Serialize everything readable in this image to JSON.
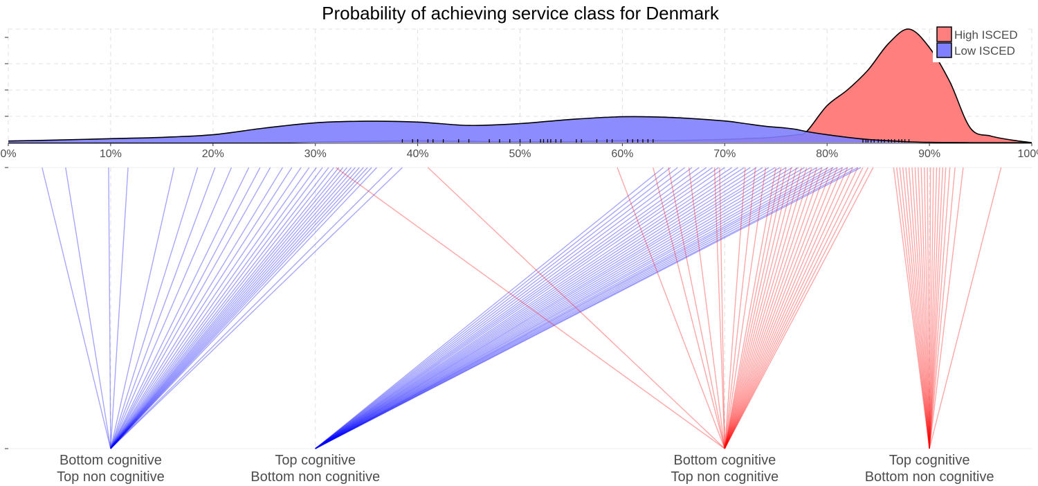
{
  "colors": {
    "high": "#ff0000",
    "low": "#0000ff",
    "high_fill": "#ff7f7f",
    "low_fill": "#7f7fff",
    "grid": "#e0e0e0",
    "text": "#4d4d4d"
  },
  "chart_data": {
    "type": "area",
    "title": "Probability of achieving service class for Denmark",
    "xlabel": "",
    "ylabel": "",
    "xlim": [
      0,
      100
    ],
    "x_ticks": [
      "0%",
      "10%",
      "20%",
      "30%",
      "40%",
      "50%",
      "60%",
      "70%",
      "80%",
      "90%",
      "100%"
    ],
    "grid": true,
    "legend": {
      "position": "top-right",
      "entries": [
        {
          "name": "High ISCED",
          "color": "#ff7f7f"
        },
        {
          "name": "Low ISCED",
          "color": "#7f7fff"
        }
      ]
    },
    "density": {
      "y_max": 4.3,
      "x": [
        0,
        5,
        10,
        15,
        20,
        25,
        30,
        35,
        40,
        45,
        50,
        55,
        60,
        65,
        70,
        72,
        74,
        76,
        77,
        78,
        80,
        82,
        84,
        86,
        88,
        90,
        92,
        94,
        96,
        98,
        100
      ],
      "series": [
        {
          "name": "Low ISCED",
          "values": [
            0.06,
            0.1,
            0.15,
            0.2,
            0.3,
            0.55,
            0.75,
            0.81,
            0.78,
            0.65,
            0.72,
            0.88,
            0.98,
            0.95,
            0.82,
            0.72,
            0.62,
            0.55,
            0.5,
            0.42,
            0.3,
            0.2,
            0.12,
            0.07,
            0.03,
            0.01,
            0.005,
            0.0,
            0.0,
            0.0,
            0.0
          ]
        },
        {
          "name": "High ISCED",
          "values": [
            0.0,
            0.0,
            0.0,
            0.0,
            0.0,
            0.0,
            0.02,
            0.05,
            0.07,
            0.05,
            0.03,
            0.04,
            0.08,
            0.08,
            0.12,
            0.15,
            0.18,
            0.25,
            0.3,
            0.42,
            1.4,
            2.0,
            2.75,
            3.75,
            4.3,
            3.6,
            2.3,
            0.55,
            0.25,
            0.1,
            0.0
          ]
        }
      ],
      "rug": [
        38.5,
        39.5,
        40.0,
        41.0,
        41.5,
        42.5,
        44.0,
        45.0,
        47.0,
        48.0,
        49.0,
        50.0,
        51.0,
        52.0,
        52.3,
        52.7,
        53.0,
        53.5,
        54.0,
        55.5,
        56.0,
        57.5,
        58.5,
        59.0,
        60.5,
        61.0,
        61.5,
        62.0,
        62.5,
        63.0,
        83.5,
        83.8,
        84.0,
        84.3,
        84.6,
        85.0,
        85.3,
        85.6,
        86.0,
        86.3,
        86.6,
        87.0,
        87.3,
        87.6,
        88.0
      ]
    },
    "groups": [
      {
        "label_line1": "Bottom cognitive",
        "label_line2": "Top non cognitive",
        "position": 10,
        "series": "Low ISCED"
      },
      {
        "label_line1": "Top cognitive",
        "label_line2": "Bottom non cognitive",
        "position": 30,
        "series": "Low ISCED"
      },
      {
        "label_line1": "Bottom cognitive",
        "label_line2": "Top non cognitive",
        "position": 70,
        "series": "High ISCED"
      },
      {
        "label_line1": "Top cognitive",
        "label_line2": "Bottom non cognitive",
        "position": 90,
        "series": "High ISCED"
      }
    ],
    "connections": [
      {
        "group": 0,
        "series": "Low ISCED",
        "values": [
          3.3,
          5.6,
          9.8,
          11.7,
          16.2,
          18.5,
          20.2,
          21.8,
          23.5,
          24.6,
          25.6,
          26.8,
          27.7,
          28.6,
          29.4,
          30.1,
          30.7,
          31.3,
          31.8,
          32.3,
          32.7,
          33.1,
          33.5,
          33.9,
          34.3,
          34.7,
          35.1,
          35.5,
          36.0,
          37.5,
          38.5
        ]
      },
      {
        "group": 1,
        "series": "Low ISCED",
        "values": [
          64.0,
          64.7,
          65.4,
          66.1,
          66.8,
          67.5,
          68.2,
          68.8,
          69.4,
          70.0,
          70.7,
          71.3,
          71.9,
          72.5,
          73.1,
          73.7,
          74.3,
          74.9,
          75.4,
          76.0,
          76.6,
          77.2,
          77.8,
          78.4,
          79.0,
          79.5,
          80.1,
          80.6,
          81.0,
          81.5,
          82.0,
          82.5,
          83.0,
          83.3
        ]
      },
      {
        "group": 2,
        "series": "High ISCED",
        "values": [
          32.0,
          41.0,
          59.5,
          63.0,
          64.5,
          66.5,
          69.0,
          69.5,
          72.0,
          73.0,
          74.0,
          75.0,
          75.5,
          76.0,
          76.5,
          77.0,
          77.5,
          78.0,
          78.5,
          79.0,
          79.5,
          80.0,
          80.5,
          81.0,
          81.5,
          82.0,
          82.5,
          83.0,
          83.5,
          84.0,
          84.5
        ]
      },
      {
        "group": 3,
        "series": "High ISCED",
        "values": [
          86.5,
          86.8,
          87.1,
          87.4,
          87.7,
          88.0,
          88.3,
          88.6,
          88.9,
          89.2,
          89.5,
          89.8,
          90.1,
          90.4,
          90.7,
          91.0,
          91.3,
          91.6,
          92.0,
          92.5,
          93.3,
          97.0
        ]
      }
    ]
  }
}
